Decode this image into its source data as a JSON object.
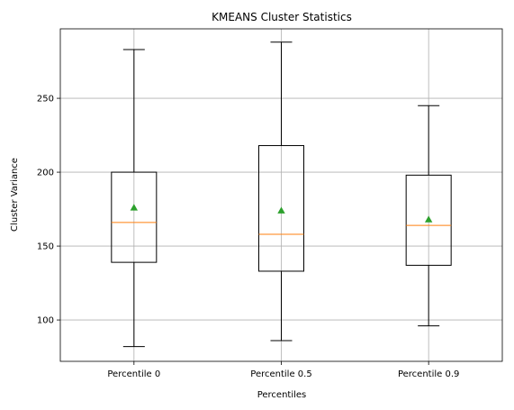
{
  "chart_data": {
    "type": "box",
    "title": "KMEANS Cluster Statistics",
    "xlabel": "Percentiles",
    "ylabel": "Cluster Variance",
    "ylim": [
      72,
      297
    ],
    "yticks": [
      100,
      150,
      200,
      250
    ],
    "grid": true,
    "categories": [
      "Percentile 0",
      "Percentile 0.5",
      "Percentile 0.9"
    ],
    "boxes": [
      {
        "category": "Percentile 0",
        "whisker_low": 82,
        "q1": 139,
        "median": 166,
        "q3": 200,
        "whisker_high": 283,
        "mean": 176
      },
      {
        "category": "Percentile 0.5",
        "whisker_low": 86,
        "q1": 133,
        "median": 158,
        "q3": 218,
        "whisker_high": 288,
        "mean": 174
      },
      {
        "category": "Percentile 0.9",
        "whisker_low": 96,
        "q1": 137,
        "median": 164,
        "q3": 198,
        "whisker_high": 245,
        "mean": 168
      }
    ],
    "colors": {
      "box": "#000000",
      "median": "#ff7f0e",
      "mean": "#2ca02c",
      "grid": "#b0b0b0"
    }
  }
}
